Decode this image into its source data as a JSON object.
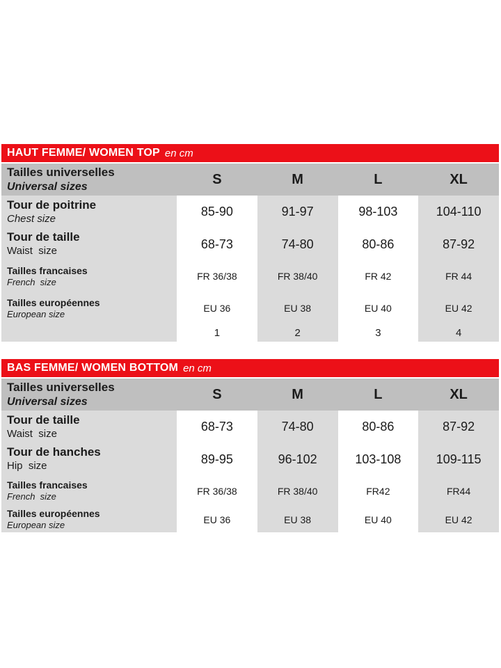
{
  "colors": {
    "accent_red": "#ec1018",
    "header_band_gray": "#bfbfbf",
    "stripe_gray": "#dbdbdb",
    "text": "#1b1b1b",
    "title_text": "#ffffff"
  },
  "tables": [
    {
      "title": "HAUT FEMME/ WOMEN TOP",
      "unit": "en cm",
      "header": {
        "label": "Tailles universelles",
        "sublabel": "Universal sizes",
        "sizes": [
          "S",
          "M",
          "L",
          "XL"
        ]
      },
      "rows": [
        {
          "label": "Tour de poitrine",
          "sublabel": "Chest size",
          "values": [
            "85-90",
            "91-97",
            "98-103",
            "104-110"
          ]
        },
        {
          "label": "Tour de taille",
          "sublabel": "Waist  size",
          "values": [
            "68-73",
            "74-80",
            "80-86",
            "87-92"
          ]
        },
        {
          "label": "Tailles francaises",
          "sublabel": "French  size",
          "values": [
            "FR 36/38",
            "FR 38/40",
            "FR 42",
            "FR 44"
          ]
        },
        {
          "label": "Tailles européennes",
          "sublabel": "European size",
          "values": [
            "EU 36",
            "EU 38",
            "EU 40",
            "EU 42"
          ]
        },
        {
          "label": "",
          "sublabel": "",
          "values": [
            "1",
            "2",
            "3",
            "4"
          ]
        }
      ]
    },
    {
      "title": "BAS FEMME/ WOMEN BOTTOM",
      "unit": "en cm",
      "header": {
        "label": "Tailles universelles",
        "sublabel": "Universal sizes",
        "sizes": [
          "S",
          "M",
          "L",
          "XL"
        ]
      },
      "rows": [
        {
          "label": "Tour de taille",
          "sublabel": "Waist  size",
          "values": [
            "68-73",
            "74-80",
            "80-86",
            "87-92"
          ]
        },
        {
          "label": "Tour de hanches",
          "sublabel": "Hip  size",
          "values": [
            "89-95",
            "96-102",
            "103-108",
            "109-115"
          ]
        },
        {
          "label": "Tailles francaises",
          "sublabel": "French  size",
          "values": [
            "FR 36/38",
            "FR 38/40",
            "FR42",
            "FR44"
          ]
        },
        {
          "label": "Tailles européennes",
          "sublabel": "European size",
          "values": [
            "EU 36",
            "EU 38",
            "EU 40",
            "EU 42"
          ]
        }
      ]
    }
  ]
}
